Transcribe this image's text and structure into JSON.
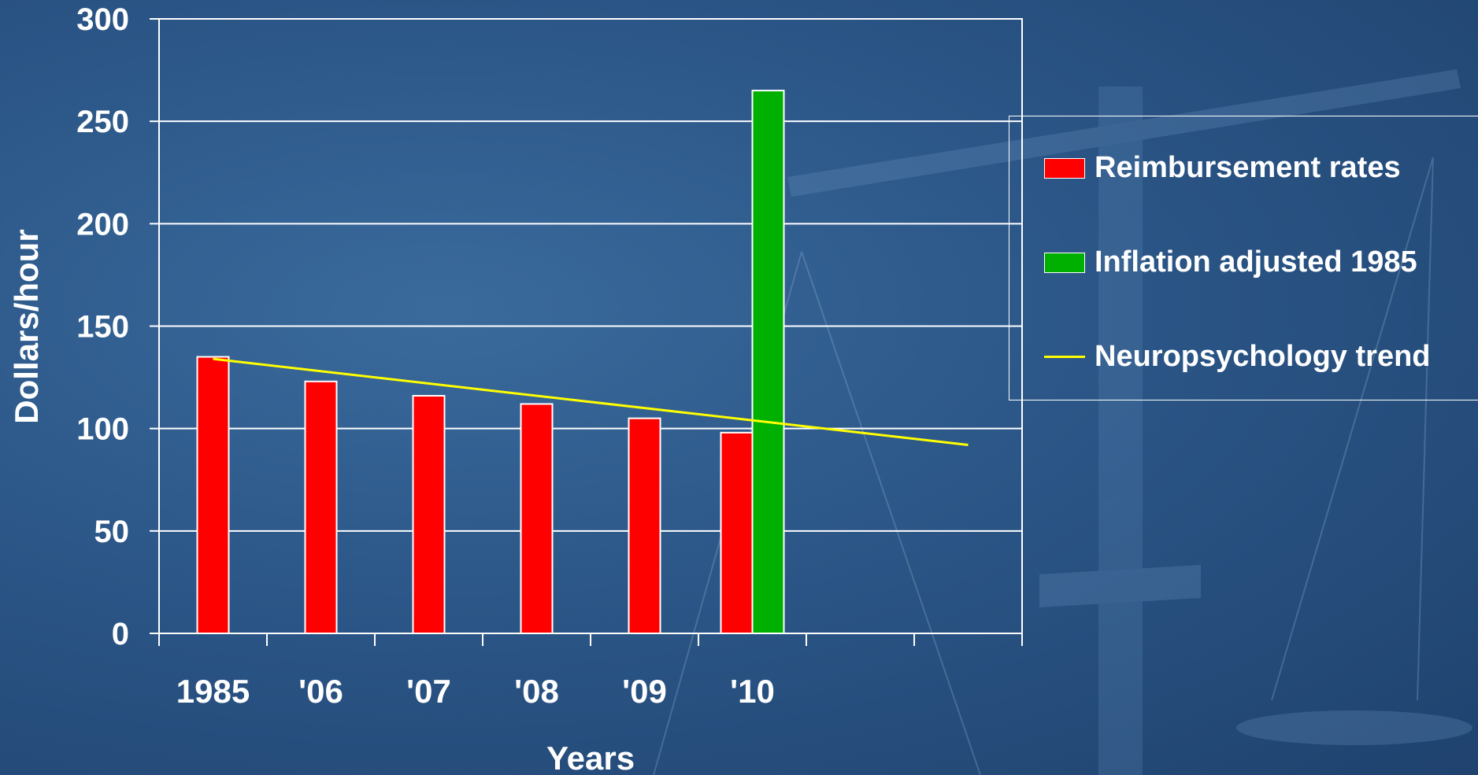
{
  "chart_data": {
    "type": "bar",
    "categories": [
      "1985",
      "'06",
      "'07",
      "'08",
      "'09",
      "'10"
    ],
    "series": [
      {
        "name": "Reimbursement rates",
        "color": "#ff0000",
        "values": [
          135,
          123,
          116,
          112,
          105,
          98
        ]
      },
      {
        "name": "Inflation adjusted 1985",
        "color": "#00b000",
        "values": [
          null,
          null,
          null,
          null,
          null,
          265
        ]
      }
    ],
    "trend": {
      "name": "Neuropsychology trend",
      "color": "#ffff00",
      "start": 134,
      "end": 92
    },
    "xlabel": "Years",
    "ylabel": "Dollars/hour",
    "ylim": [
      0,
      300
    ],
    "yticks": [
      "0",
      "50",
      "100",
      "150",
      "200",
      "250",
      "300"
    ],
    "grid": true,
    "legend_position": "right"
  }
}
